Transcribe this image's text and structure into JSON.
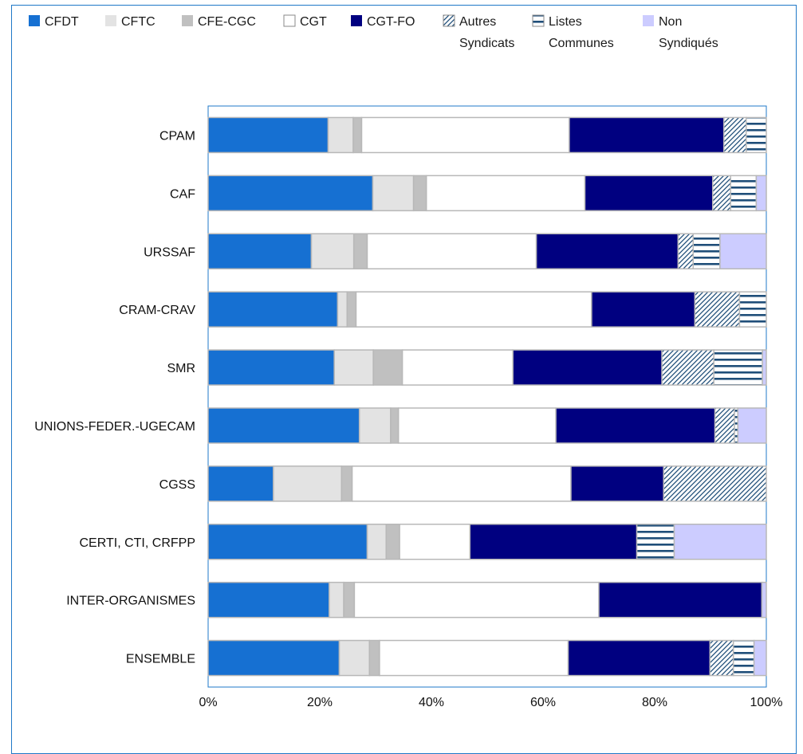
{
  "chart_data": {
    "type": "bar",
    "orientation": "horizontal",
    "stacked": "percent",
    "categories": [
      "CPAM",
      "CAF",
      "URSSAF",
      "CRAM-CRAV",
      "SMR",
      "UNIONS-FEDER.-UGECAM",
      "CGSS",
      "CERTI, CTI, CRFPP",
      "INTER-ORGANISMES",
      "ENSEMBLE"
    ],
    "series": [
      {
        "name": "CFDT",
        "legend": [
          "CFDT"
        ],
        "color": "#1670d2",
        "pattern": "solid",
        "values": [
          21.5,
          29.5,
          18.5,
          23.2,
          22.6,
          27.1,
          11.7,
          28.5,
          21.7,
          23.5
        ]
      },
      {
        "name": "CFTC",
        "legend": [
          "CFTC"
        ],
        "color": "#e3e3e3",
        "pattern": "solid",
        "values": [
          4.5,
          7.3,
          7.6,
          1.7,
          7.0,
          5.6,
          12.2,
          3.4,
          2.6,
          5.4
        ]
      },
      {
        "name": "CFE-CGC",
        "legend": [
          "CFE-CGC"
        ],
        "color": "#c0c0c0",
        "pattern": "solid",
        "values": [
          1.5,
          2.3,
          2.4,
          1.6,
          5.2,
          1.4,
          1.9,
          2.4,
          1.9,
          1.8
        ]
      },
      {
        "name": "CGT",
        "legend": [
          "CGT"
        ],
        "color": "#ffffff",
        "pattern": "solid",
        "values": [
          37.2,
          28.4,
          30.3,
          42.2,
          19.8,
          28.2,
          39.2,
          12.6,
          43.8,
          33.8
        ]
      },
      {
        "name": "CGT-FO",
        "legend": [
          "CGT-FO"
        ],
        "color": "#000080",
        "pattern": "solid",
        "values": [
          27.7,
          22.9,
          25.4,
          18.5,
          26.7,
          28.5,
          16.6,
          29.9,
          29.2,
          25.4
        ]
      },
      {
        "name": "Autres Syndicats",
        "legend": [
          "Autres",
          "Syndicats"
        ],
        "color": "#1f4e79",
        "pattern": "diagonal",
        "values": [
          4.0,
          3.2,
          2.7,
          8.0,
          9.3,
          3.5,
          18.4,
          0,
          0,
          4.2
        ]
      },
      {
        "name": "Listes Communes",
        "legend": [
          "Listes",
          "Communes"
        ],
        "color": "#1f4e79",
        "pattern": "horizontal",
        "values": [
          3.6,
          4.6,
          4.8,
          4.8,
          8.7,
          0.6,
          0,
          6.7,
          0,
          3.7
        ]
      },
      {
        "name": "Non Syndiqués",
        "legend": [
          "Non",
          "Syndiqués"
        ],
        "color": "#ccccff",
        "pattern": "solid",
        "values": [
          0,
          1.8,
          8.3,
          0,
          0.7,
          5.1,
          0,
          16.5,
          0.8,
          2.2
        ]
      }
    ],
    "x_ticks": [
      "0%",
      "20%",
      "40%",
      "60%",
      "80%",
      "100%"
    ],
    "xlim": [
      0,
      100
    ],
    "grid": false,
    "legend_position": "top"
  }
}
